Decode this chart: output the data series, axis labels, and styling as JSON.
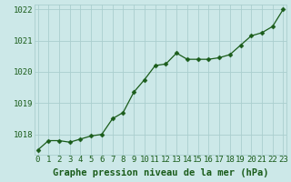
{
  "x": [
    0,
    1,
    2,
    3,
    4,
    5,
    6,
    7,
    8,
    9,
    10,
    11,
    12,
    13,
    14,
    15,
    16,
    17,
    18,
    19,
    20,
    21,
    22,
    23
  ],
  "y": [
    1017.5,
    1017.8,
    1017.8,
    1017.75,
    1017.85,
    1017.95,
    1018.0,
    1018.5,
    1018.7,
    1019.35,
    1019.75,
    1020.2,
    1020.25,
    1020.6,
    1020.4,
    1020.4,
    1020.4,
    1020.45,
    1020.55,
    1020.85,
    1021.15,
    1021.25,
    1021.45,
    1022.0
  ],
  "line_color": "#1a5c1a",
  "marker_color": "#1a5c1a",
  "bg_color": "#cce8e8",
  "grid_color": "#aacece",
  "xlabel": "Graphe pression niveau de la mer (hPa)",
  "xlabel_color": "#1a5c1a",
  "tick_color": "#1a5c1a",
  "ylim": [
    1017.35,
    1022.15
  ],
  "yticks": [
    1018,
    1019,
    1020,
    1021,
    1022
  ],
  "xticks": [
    0,
    1,
    2,
    3,
    4,
    5,
    6,
    7,
    8,
    9,
    10,
    11,
    12,
    13,
    14,
    15,
    16,
    17,
    18,
    19,
    20,
    21,
    22,
    23
  ],
  "tick_fontsize": 6.5,
  "xlabel_fontsize": 7.5
}
